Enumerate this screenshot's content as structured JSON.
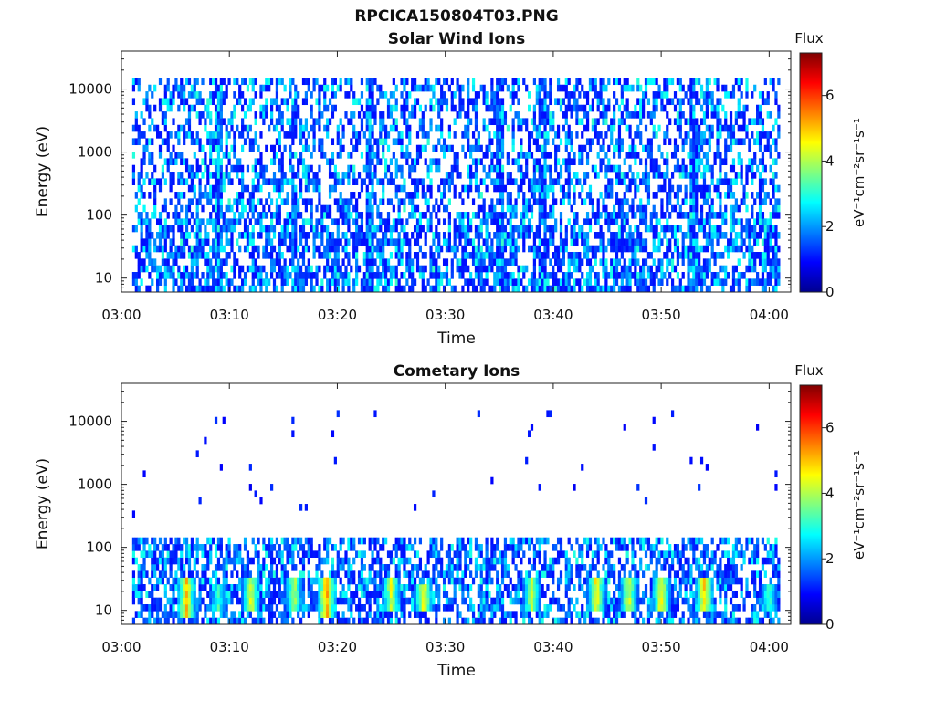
{
  "figure_title": "RPCICA150804T03.PNG",
  "colors": {
    "background": "#ffffff",
    "colormap": "jet",
    "axis": "#222222"
  },
  "chart_data": [
    {
      "type": "heatmap",
      "title": "Solar Wind Ions",
      "xlabel": "Time",
      "ylabel": "Energy (eV)",
      "x_ticks": [
        "03:00",
        "03:10",
        "03:20",
        "03:30",
        "03:40",
        "03:50",
        "04:00"
      ],
      "x_range": [
        "03:00",
        "04:02"
      ],
      "y_scale": "log",
      "y_ticks": [
        "10",
        "100",
        "1000",
        "10000"
      ],
      "y_range": [
        6,
        40000
      ],
      "colorbar": {
        "title": "Flux",
        "label": "eV⁻¹cm⁻²sr⁻¹s⁻¹",
        "ticks": [
          "0",
          "2",
          "4",
          "6"
        ],
        "range": [
          0,
          7.3
        ]
      },
      "data_start": "03:01",
      "data_end": "04:01",
      "upper_energy_cutoff": 15000,
      "noise_level": [
        1,
        3
      ],
      "low_energy_band": {
        "energy_range": [
          6,
          100
        ],
        "flux_range": [
          1,
          3
        ]
      },
      "max_flux": 3.2,
      "vertical_streaks": [
        "03:09",
        "03:16",
        "03:23",
        "03:35",
        "03:39",
        "03:53"
      ]
    },
    {
      "type": "heatmap",
      "title": "Cometary Ions",
      "xlabel": "Time",
      "ylabel": "Energy (eV)",
      "x_ticks": [
        "03:00",
        "03:10",
        "03:20",
        "03:30",
        "03:40",
        "03:50",
        "04:00"
      ],
      "x_range": [
        "03:00",
        "04:02"
      ],
      "y_scale": "log",
      "y_ticks": [
        "10",
        "100",
        "1000",
        "10000"
      ],
      "y_range": [
        6,
        40000
      ],
      "colorbar": {
        "title": "Flux",
        "label": "eV⁻¹cm⁻²sr⁻¹s⁻¹",
        "ticks": [
          "0",
          "2",
          "4",
          "6"
        ],
        "range": [
          0,
          7.3
        ]
      },
      "data_start": "03:01",
      "data_end": "04:01",
      "dense_band": {
        "energy_range": [
          6,
          130
        ],
        "flux_range": [
          1,
          3
        ]
      },
      "sparse_high_energy": {
        "energy_range": [
          300,
          15000
        ],
        "flux": 1
      },
      "max_flux": 5.8,
      "bursts": [
        {
          "time": "03:06",
          "energy_range": [
            8,
            30
          ],
          "peak_flux": 5.5
        },
        {
          "time": "03:09",
          "energy_range": [
            10,
            25
          ],
          "peak_flux": 3.5
        },
        {
          "time": "03:12",
          "energy_range": [
            10,
            30
          ],
          "peak_flux": 4.8
        },
        {
          "time": "03:16",
          "energy_range": [
            10,
            30
          ],
          "peak_flux": 4.5
        },
        {
          "time": "03:19",
          "energy_range": [
            8,
            30
          ],
          "peak_flux": 5.8
        },
        {
          "time": "03:25",
          "energy_range": [
            10,
            30
          ],
          "peak_flux": 4.8
        },
        {
          "time": "03:28",
          "energy_range": [
            10,
            25
          ],
          "peak_flux": 5.2
        },
        {
          "time": "03:38",
          "energy_range": [
            10,
            30
          ],
          "peak_flux": 4.5
        },
        {
          "time": "03:44",
          "energy_range": [
            10,
            30
          ],
          "peak_flux": 5.2
        },
        {
          "time": "03:47",
          "energy_range": [
            10,
            30
          ],
          "peak_flux": 4.8
        },
        {
          "time": "03:50",
          "energy_range": [
            10,
            30
          ],
          "peak_flux": 5.2
        },
        {
          "time": "03:54",
          "energy_range": [
            10,
            30
          ],
          "peak_flux": 5.5
        },
        {
          "time": "04:00",
          "energy_range": [
            10,
            25
          ],
          "peak_flux": 3.8
        }
      ]
    }
  ]
}
